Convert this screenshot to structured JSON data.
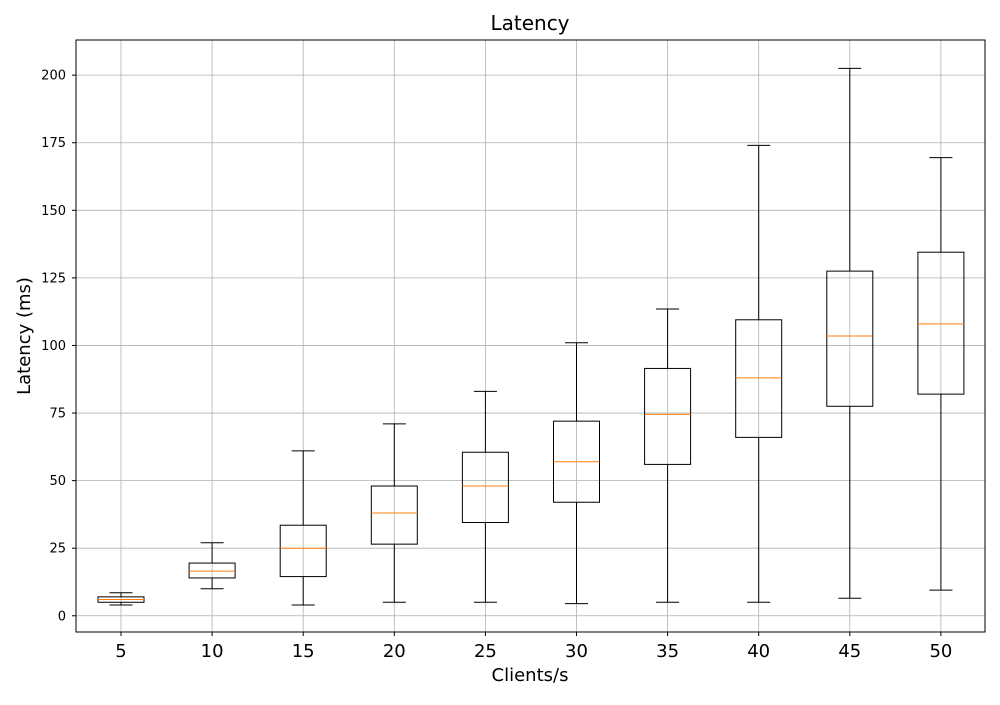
{
  "chart_data": {
    "type": "box",
    "title": "Latency",
    "xlabel": "Clients/s",
    "ylabel": "Latency (ms)",
    "ylim": [
      -6,
      213
    ],
    "yticks": [
      0,
      25,
      50,
      75,
      100,
      125,
      150,
      175,
      200
    ],
    "grid": true,
    "categories": [
      "5",
      "10",
      "15",
      "20",
      "25",
      "30",
      "35",
      "40",
      "45",
      "50"
    ],
    "boxes": [
      {
        "category": "5",
        "whisker_low": 4,
        "q1": 5,
        "median": 6,
        "q3": 7,
        "whisker_high": 8.5
      },
      {
        "category": "10",
        "whisker_low": 10,
        "q1": 14,
        "median": 16.5,
        "q3": 19.5,
        "whisker_high": 27
      },
      {
        "category": "15",
        "whisker_low": 4,
        "q1": 14.5,
        "median": 25,
        "q3": 33.5,
        "whisker_high": 61
      },
      {
        "category": "20",
        "whisker_low": 5,
        "q1": 26.5,
        "median": 38,
        "q3": 48,
        "whisker_high": 71
      },
      {
        "category": "25",
        "whisker_low": 5,
        "q1": 34.5,
        "median": 48,
        "q3": 60.5,
        "whisker_high": 83
      },
      {
        "category": "30",
        "whisker_low": 4.5,
        "q1": 42,
        "median": 57,
        "q3": 72,
        "whisker_high": 101
      },
      {
        "category": "35",
        "whisker_low": 5,
        "q1": 56,
        "median": 74.5,
        "q3": 91.5,
        "whisker_high": 113.5
      },
      {
        "category": "40",
        "whisker_low": 5,
        "q1": 66,
        "median": 88,
        "q3": 109.5,
        "whisker_high": 174
      },
      {
        "category": "45",
        "whisker_low": 6.5,
        "q1": 77.5,
        "median": 103.5,
        "q3": 127.5,
        "whisker_high": 202.5
      },
      {
        "category": "50",
        "whisker_low": 9.5,
        "q1": 82,
        "median": 108,
        "q3": 134.5,
        "whisker_high": 169.5
      }
    ],
    "colors": {
      "box": "#000000",
      "median": "#ff7f0e",
      "grid": "#b0b0b0"
    }
  }
}
